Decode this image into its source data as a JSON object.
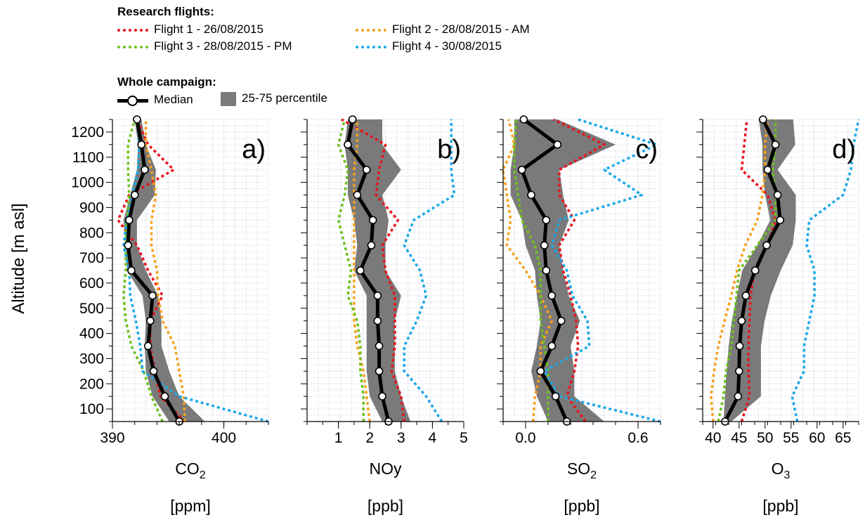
{
  "legend": {
    "flights_title": "Research flights:",
    "flights": [
      {
        "label": "Flight 1 - 26/08/2015",
        "color": "#e8141b"
      },
      {
        "label": "Flight 2 - 28/08/2015 - AM",
        "color": "#f7a21b"
      },
      {
        "label": "Flight 3 - 28/08/2015 - PM",
        "color": "#6dc21d"
      },
      {
        "label": "Flight 4 - 30/08/2015",
        "color": "#1ba8e8"
      }
    ],
    "campaign_title": "Whole campaign:",
    "median_label": "Median",
    "percentile_label": "25-75 percentile",
    "percentile_color": "#7a7a7a"
  },
  "chart_data": [
    {
      "type": "line",
      "panel_label": "a)",
      "xlabel": "CO2",
      "xunit": "[ppm]",
      "ylabel": "Altitude [m asl]",
      "xlim": [
        390,
        404
      ],
      "ylim": [
        50,
        1250
      ],
      "xticks": [
        390,
        400
      ],
      "yticks": [
        100,
        200,
        300,
        400,
        500,
        600,
        700,
        800,
        900,
        1000,
        1100,
        1200
      ],
      "grid": true,
      "altitudes": [
        50,
        150,
        250,
        350,
        450,
        550,
        650,
        750,
        850,
        950,
        1050,
        1150,
        1250
      ],
      "median": [
        396.0,
        394.7,
        393.7,
        393.2,
        393.4,
        393.6,
        391.7,
        391.4,
        391.5,
        392.0,
        392.9,
        392.6,
        392.2
      ],
      "p25": [
        395.1,
        393.6,
        393.0,
        392.9,
        393.0,
        392.7,
        391.3,
        391.2,
        391.0,
        391.6,
        392.2,
        392.3,
        392.0
      ],
      "p75": [
        398.3,
        396.0,
        395.1,
        394.4,
        394.4,
        394.1,
        393.0,
        392.2,
        392.2,
        393.8,
        393.9,
        393.0,
        392.6
      ],
      "series": [
        {
          "name": "Flight 1 - 26/08/2015",
          "values": [
            396.5,
            394.3,
            393.8,
            393.4,
            393.4,
            394.5,
            393.2,
            392.2,
            390.5,
            391.5,
            395.5,
            393.2,
            392.2
          ]
        },
        {
          "name": "Flight 2 - 28/08/2015 - AM",
          "values": [
            396.5,
            396.4,
            396.0,
            395.6,
            394.5,
            394.1,
            394.0,
            393.5,
            393.5,
            393.9,
            393.5,
            393.0,
            393.0
          ]
        },
        {
          "name": "Flight 3 - 28/08/2015 - PM",
          "values": [
            394.5,
            393.5,
            392.8,
            391.7,
            391.2,
            391.0,
            391.2,
            391.2,
            391.3,
            391.5,
            391.4,
            391.4,
            392.0
          ]
        },
        {
          "name": "Flight 4 - 30/08/2015",
          "values": [
            404.0,
            396.0,
            392.7,
            392.5,
            392.1,
            391.6,
            391.5,
            391.0,
            391.3,
            391.8,
            392.3,
            392.4,
            392.3
          ]
        }
      ]
    },
    {
      "type": "line",
      "panel_label": "b)",
      "xlabel": "NOy",
      "xunit": "[ppb]",
      "xlim": [
        0,
        5
      ],
      "ylim": [
        50,
        1250
      ],
      "xticks": [
        1,
        2,
        3,
        4,
        5
      ],
      "grid": true,
      "altitudes": [
        50,
        150,
        250,
        350,
        450,
        550,
        650,
        750,
        850,
        950,
        1050,
        1150,
        1250
      ],
      "median": [
        2.6,
        2.4,
        2.3,
        2.3,
        2.25,
        2.25,
        1.7,
        2.05,
        2.1,
        1.6,
        1.9,
        1.3,
        1.45
      ],
      "p25": [
        2.4,
        2.0,
        1.9,
        1.9,
        1.9,
        1.9,
        1.5,
        1.6,
        1.5,
        1.3,
        1.3,
        1.2,
        1.3
      ],
      "p75": [
        3.3,
        3.0,
        2.8,
        2.8,
        2.8,
        3.0,
        2.5,
        2.5,
        2.6,
        2.4,
        3.0,
        2.4,
        2.4
      ],
      "series": [
        {
          "name": "Flight 1 - 26/08/2015",
          "values": [
            3.1,
            3.0,
            2.7,
            2.8,
            2.8,
            2.8,
            2.5,
            2.4,
            2.9,
            2.2,
            2.3,
            2.5,
            1.1
          ]
        },
        {
          "name": "Flight 2 - 28/08/2015 - AM",
          "values": [
            2.0,
            1.9,
            1.8,
            1.6,
            1.5,
            1.5,
            1.5,
            1.5,
            1.5,
            1.5,
            1.5,
            1.6,
            1.6
          ]
        },
        {
          "name": "Flight 3 - 28/08/2015 - PM",
          "values": [
            1.8,
            1.8,
            1.7,
            1.7,
            1.6,
            1.3,
            1.4,
            1.2,
            1.0,
            1.2,
            1.3,
            1.0,
            1.2
          ]
        },
        {
          "name": "Flight 4 - 30/08/2015",
          "values": [
            4.3,
            3.8,
            3.1,
            3.1,
            3.5,
            3.8,
            3.6,
            3.1,
            3.4,
            4.7,
            4.6,
            4.6,
            4.6
          ]
        }
      ]
    },
    {
      "type": "line",
      "panel_label": "c)",
      "xlabel": "SO2",
      "xunit": "[ppb]",
      "xlim": [
        -0.12,
        0.72
      ],
      "ylim": [
        50,
        1250
      ],
      "xticks": [
        0.0,
        0.6
      ],
      "xticklabels": [
        "0.0",
        "0.6"
      ],
      "grid": true,
      "altitudes": [
        50,
        150,
        250,
        350,
        450,
        550,
        650,
        750,
        850,
        950,
        1050,
        1150,
        1250
      ],
      "median": [
        0.22,
        0.16,
        0.08,
        0.14,
        0.19,
        0.14,
        0.11,
        0.1,
        0.11,
        0.03,
        -0.02,
        0.17,
        -0.01
      ],
      "p25": [
        0.12,
        0.06,
        0.03,
        0.06,
        0.08,
        0.06,
        0.05,
        0.0,
        -0.02,
        -0.08,
        -0.08,
        -0.06,
        -0.06
      ],
      "p75": [
        0.42,
        0.26,
        0.26,
        0.24,
        0.29,
        0.23,
        0.2,
        0.18,
        0.23,
        0.2,
        0.18,
        0.48,
        0.17
      ],
      "series": [
        {
          "name": "Flight 1 - 26/08/2015",
          "values": [
            0.32,
            0.22,
            0.26,
            0.28,
            0.27,
            0.24,
            0.2,
            0.18,
            0.26,
            0.18,
            0.18,
            0.42,
            0.15
          ]
        },
        {
          "name": "Flight 2 - 28/08/2015 - AM",
          "values": [
            0.04,
            0.05,
            0.08,
            0.08,
            0.14,
            0.08,
            0.0,
            -0.1,
            -0.08,
            -0.1,
            -0.12,
            -0.06,
            -0.09
          ]
        },
        {
          "name": "Flight 3 - 28/08/2015 - PM",
          "values": [
            0.12,
            0.12,
            0.12,
            0.1,
            0.08,
            0.08,
            0.08,
            0.05,
            -0.02,
            -0.04,
            -0.06,
            -0.06,
            -0.05
          ]
        },
        {
          "name": "Flight 4 - 30/08/2015",
          "values": [
            0.72,
            0.18,
            0.1,
            0.34,
            0.33,
            0.25,
            0.22,
            0.14,
            0.18,
            0.62,
            0.42,
            0.7,
            0.28
          ]
        }
      ]
    },
    {
      "type": "line",
      "panel_label": "d)",
      "xlabel": "O3",
      "xunit": "[ppb]",
      "xlim": [
        38,
        68
      ],
      "ylim": [
        50,
        1250
      ],
      "xticks": [
        40,
        45,
        50,
        55,
        60,
        65
      ],
      "grid": true,
      "altitudes": [
        50,
        150,
        250,
        350,
        450,
        550,
        650,
        750,
        850,
        950,
        1050,
        1150,
        1250
      ],
      "median": [
        42.3,
        44.8,
        45.0,
        45.1,
        45.5,
        46.3,
        48.1,
        50.3,
        52.9,
        52.4,
        50.5,
        52.0,
        49.6
      ],
      "p25": [
        42.0,
        42.3,
        42.6,
        43.0,
        43.6,
        44.6,
        45.6,
        48.5,
        51.0,
        50.0,
        49.5,
        49.5,
        48.8
      ],
      "p75": [
        43.5,
        49.2,
        49.2,
        49.2,
        49.9,
        51.1,
        53.0,
        55.3,
        55.9,
        55.9,
        52.4,
        55.8,
        55.4
      ],
      "series": [
        {
          "name": "Flight 1 - 26/08/2015",
          "values": [
            45.5,
            47.0,
            46.8,
            46.8,
            47.0,
            47.2,
            48.0,
            50.5,
            52.0,
            50.5,
            45.5,
            46.0,
            46.5
          ]
        },
        {
          "name": "Flight 2 - 28/08/2015 - AM",
          "values": [
            40.0,
            39.6,
            40.2,
            41.0,
            42.2,
            43.5,
            44.6,
            46.2,
            48.5,
            49.5,
            50.0,
            50.0,
            50.5
          ]
        },
        {
          "name": "Flight 3 - 28/08/2015 - PM",
          "values": [
            41.0,
            42.0,
            42.5,
            43.5,
            44.0,
            44.5,
            45.0,
            48.5,
            52.0,
            52.0,
            51.5,
            52.0,
            52.0
          ]
        },
        {
          "name": "Flight 4 - 30/08/2015",
          "values": [
            56.2,
            55.2,
            57.5,
            57.5,
            58.5,
            59.5,
            59.5,
            58.0,
            58.5,
            65.0,
            66.5,
            67.0,
            68.0
          ]
        }
      ]
    }
  ]
}
